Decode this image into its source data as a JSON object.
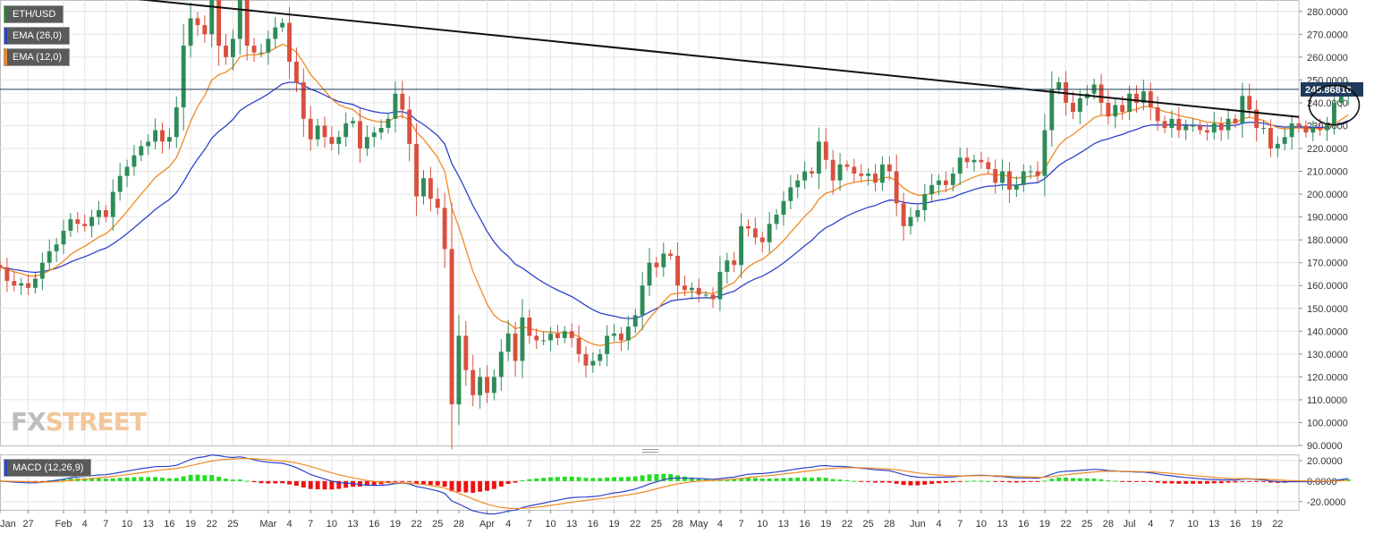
{
  "legends": [
    {
      "label": "ETH/USD",
      "color": "#2e7d32"
    },
    {
      "label": "EMA (26,0)",
      "color": "#2e42c8"
    },
    {
      "label": "EMA (12,0)",
      "color": "#f08a24"
    },
    {
      "label": "MACD (12,26,9)",
      "color": "#2e42c8"
    }
  ],
  "watermark": {
    "part1": "FX",
    "part2": "STREET"
  },
  "colors": {
    "up": "#2e8b57",
    "down": "#d9503f",
    "ema26": "#2e42c8",
    "ema12": "#f08a24",
    "hist_up": "#22dd22",
    "hist_down": "#ee1111",
    "grid": "#e4e4e4",
    "price_tag": "#1f3a5a"
  },
  "chart_data": {
    "type": "candlestick",
    "symbol": "ETH/USD",
    "ylim": [
      90,
      285
    ],
    "y_ticks": [
      "280.0000",
      "270.0000",
      "260.0000",
      "250.0000",
      "240.0000",
      "230.0000",
      "220.0000",
      "210.0000",
      "200.0000",
      "190.0000",
      "180.0000",
      "170.0000",
      "160.0000",
      "150.0000",
      "140.0000",
      "130.0000",
      "120.0000",
      "110.0000",
      "100.0000",
      "90.0000"
    ],
    "current_price": "245.86816",
    "x_range": [
      "2020-01-23",
      "2020-07-25"
    ],
    "x_ticks": [
      {
        "date": "2020-01-23",
        "label": "Jan"
      },
      {
        "date": "2020-01-27",
        "label": "27"
      },
      {
        "date": "2020-02-01",
        "label": "Feb"
      },
      {
        "date": "2020-02-04",
        "label": "4"
      },
      {
        "date": "2020-02-07",
        "label": "7"
      },
      {
        "date": "2020-02-10",
        "label": "10"
      },
      {
        "date": "2020-02-13",
        "label": "13"
      },
      {
        "date": "2020-02-16",
        "label": "16"
      },
      {
        "date": "2020-02-19",
        "label": "19"
      },
      {
        "date": "2020-02-22",
        "label": "22"
      },
      {
        "date": "2020-02-25",
        "label": "25"
      },
      {
        "date": "2020-03-01",
        "label": "Mar"
      },
      {
        "date": "2020-03-04",
        "label": "4"
      },
      {
        "date": "2020-03-07",
        "label": "7"
      },
      {
        "date": "2020-03-10",
        "label": "10"
      },
      {
        "date": "2020-03-13",
        "label": "13"
      },
      {
        "date": "2020-03-16",
        "label": "16"
      },
      {
        "date": "2020-03-19",
        "label": "19"
      },
      {
        "date": "2020-03-22",
        "label": "22"
      },
      {
        "date": "2020-03-25",
        "label": "25"
      },
      {
        "date": "2020-03-28",
        "label": "28"
      },
      {
        "date": "2020-04-01",
        "label": "Apr"
      },
      {
        "date": "2020-04-04",
        "label": "4"
      },
      {
        "date": "2020-04-07",
        "label": "7"
      },
      {
        "date": "2020-04-10",
        "label": "10"
      },
      {
        "date": "2020-04-13",
        "label": "13"
      },
      {
        "date": "2020-04-16",
        "label": "16"
      },
      {
        "date": "2020-04-19",
        "label": "19"
      },
      {
        "date": "2020-04-22",
        "label": "22"
      },
      {
        "date": "2020-04-25",
        "label": "25"
      },
      {
        "date": "2020-04-28",
        "label": "28"
      },
      {
        "date": "2020-05-01",
        "label": "May"
      },
      {
        "date": "2020-05-04",
        "label": "4"
      },
      {
        "date": "2020-05-07",
        "label": "7"
      },
      {
        "date": "2020-05-10",
        "label": "10"
      },
      {
        "date": "2020-05-13",
        "label": "13"
      },
      {
        "date": "2020-05-16",
        "label": "16"
      },
      {
        "date": "2020-05-19",
        "label": "19"
      },
      {
        "date": "2020-05-22",
        "label": "22"
      },
      {
        "date": "2020-05-25",
        "label": "25"
      },
      {
        "date": "2020-05-28",
        "label": "28"
      },
      {
        "date": "2020-06-01",
        "label": "Jun"
      },
      {
        "date": "2020-06-04",
        "label": "4"
      },
      {
        "date": "2020-06-07",
        "label": "7"
      },
      {
        "date": "2020-06-10",
        "label": "10"
      },
      {
        "date": "2020-06-13",
        "label": "13"
      },
      {
        "date": "2020-06-16",
        "label": "16"
      },
      {
        "date": "2020-06-19",
        "label": "19"
      },
      {
        "date": "2020-06-22",
        "label": "22"
      },
      {
        "date": "2020-06-25",
        "label": "25"
      },
      {
        "date": "2020-06-28",
        "label": "28"
      },
      {
        "date": "2020-07-01",
        "label": "Jul"
      },
      {
        "date": "2020-07-04",
        "label": "4"
      },
      {
        "date": "2020-07-07",
        "label": "7"
      },
      {
        "date": "2020-07-10",
        "label": "10"
      },
      {
        "date": "2020-07-13",
        "label": "13"
      },
      {
        "date": "2020-07-16",
        "label": "16"
      },
      {
        "date": "2020-07-19",
        "label": "19"
      },
      {
        "date": "2020-07-22",
        "label": "22"
      }
    ],
    "candles": {
      "start_date": "2020-01-23",
      "interval": "1 day",
      "close": [
        168,
        162,
        160,
        161,
        159,
        163,
        170,
        175,
        178,
        184,
        189,
        187,
        186,
        190,
        193,
        190,
        201,
        208,
        212,
        217,
        221,
        223,
        228,
        223,
        225,
        238,
        265,
        277,
        274,
        270,
        287,
        265,
        260,
        268,
        285,
        265,
        262,
        262,
        268,
        273,
        275,
        258,
        249,
        233,
        224,
        230,
        225,
        222,
        225,
        231,
        232,
        220,
        225,
        227,
        229,
        233,
        244,
        237,
        222,
        199,
        207,
        198,
        194,
        176,
        108,
        138,
        123,
        112,
        120,
        113,
        120,
        131,
        139,
        127,
        146,
        138,
        136,
        136,
        139,
        137,
        140,
        137,
        130,
        125,
        127,
        130,
        138,
        139,
        136,
        142,
        147,
        160,
        170,
        168,
        174,
        173,
        160,
        158,
        159,
        156,
        156,
        154,
        166,
        171,
        169,
        186,
        185,
        181,
        179,
        187,
        191,
        197,
        203,
        206,
        210,
        209,
        223,
        215,
        206,
        213,
        212,
        209,
        208,
        209,
        205,
        213,
        210,
        196,
        186,
        190,
        193,
        200,
        204,
        206,
        204,
        209,
        216,
        214,
        215,
        214,
        211,
        205,
        210,
        202,
        204,
        210,
        210,
        208,
        228,
        246,
        249,
        240,
        236,
        242,
        244,
        248,
        240,
        234,
        239,
        236,
        244,
        240,
        245,
        238,
        232,
        229,
        233,
        228,
        230,
        230,
        228,
        227,
        231,
        228,
        233,
        231,
        243,
        237,
        229,
        229,
        220,
        222,
        225,
        231,
        230,
        227,
        229,
        228,
        231,
        240,
        243,
        246
      ]
    },
    "trendline": {
      "from_date": "2020-02-08",
      "from_value": 286.5,
      "to_date": "2020-07-25",
      "to_value": 233.8
    },
    "series": [
      {
        "name": "EMA (26,0)",
        "window": 26
      },
      {
        "name": "EMA (12,0)",
        "window": 12
      }
    ],
    "macd_panel": {
      "name": "MACD (12,26,9)",
      "ylim": [
        -28,
        26
      ],
      "y_ticks": [
        "20.0000",
        "0.0000",
        "-20.0000"
      ]
    },
    "annotations": [
      {
        "type": "ellipse",
        "around": "last candles near 240.0000 close"
      }
    ]
  }
}
